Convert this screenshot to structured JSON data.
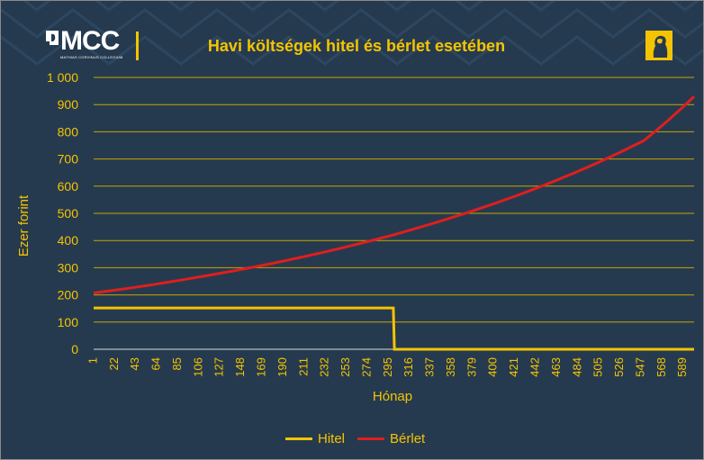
{
  "header": {
    "logo_text": "MCC",
    "logo_subtext": "MATHIAS CORVINUS COLLEGIUM"
  },
  "colors": {
    "background": "#253a4f",
    "accent": "#f5c400",
    "hitel": "#f5c400",
    "berlet": "#e01e1e"
  },
  "chart_data": {
    "type": "line",
    "title": "Havi költségek hitel és bérlet esetében",
    "xlabel": "Hónap",
    "ylabel": "Ezer forint",
    "x_range": [
      1,
      600
    ],
    "x_tick_labels": [
      1,
      22,
      43,
      64,
      85,
      106,
      127,
      148,
      169,
      190,
      211,
      232,
      253,
      274,
      295,
      316,
      337,
      358,
      379,
      400,
      421,
      442,
      463,
      484,
      505,
      526,
      547,
      568,
      589
    ],
    "ylim": [
      0,
      1000
    ],
    "y_ticks": [
      0,
      100,
      200,
      300,
      400,
      500,
      600,
      700,
      800,
      900,
      1000
    ],
    "y_tick_labels": [
      "0",
      "100",
      "200",
      "300",
      "400",
      "500",
      "600",
      "700",
      "800",
      "900",
      "1 000"
    ],
    "grid": true,
    "legend_position": "bottom",
    "series": [
      {
        "name": "Hitel",
        "x": [
          1,
          300,
          301,
          600
        ],
        "values": [
          152,
          152,
          0,
          0
        ]
      },
      {
        "name": "Bérlet",
        "x": [
          1,
          50,
          100,
          150,
          200,
          250,
          300,
          350,
          400,
          450,
          500,
          550,
          600
        ],
        "values": [
          207,
          232,
          262,
          295,
          332,
          374,
          421,
          475,
          535,
          603,
          680,
          768,
          930
        ]
      }
    ]
  }
}
